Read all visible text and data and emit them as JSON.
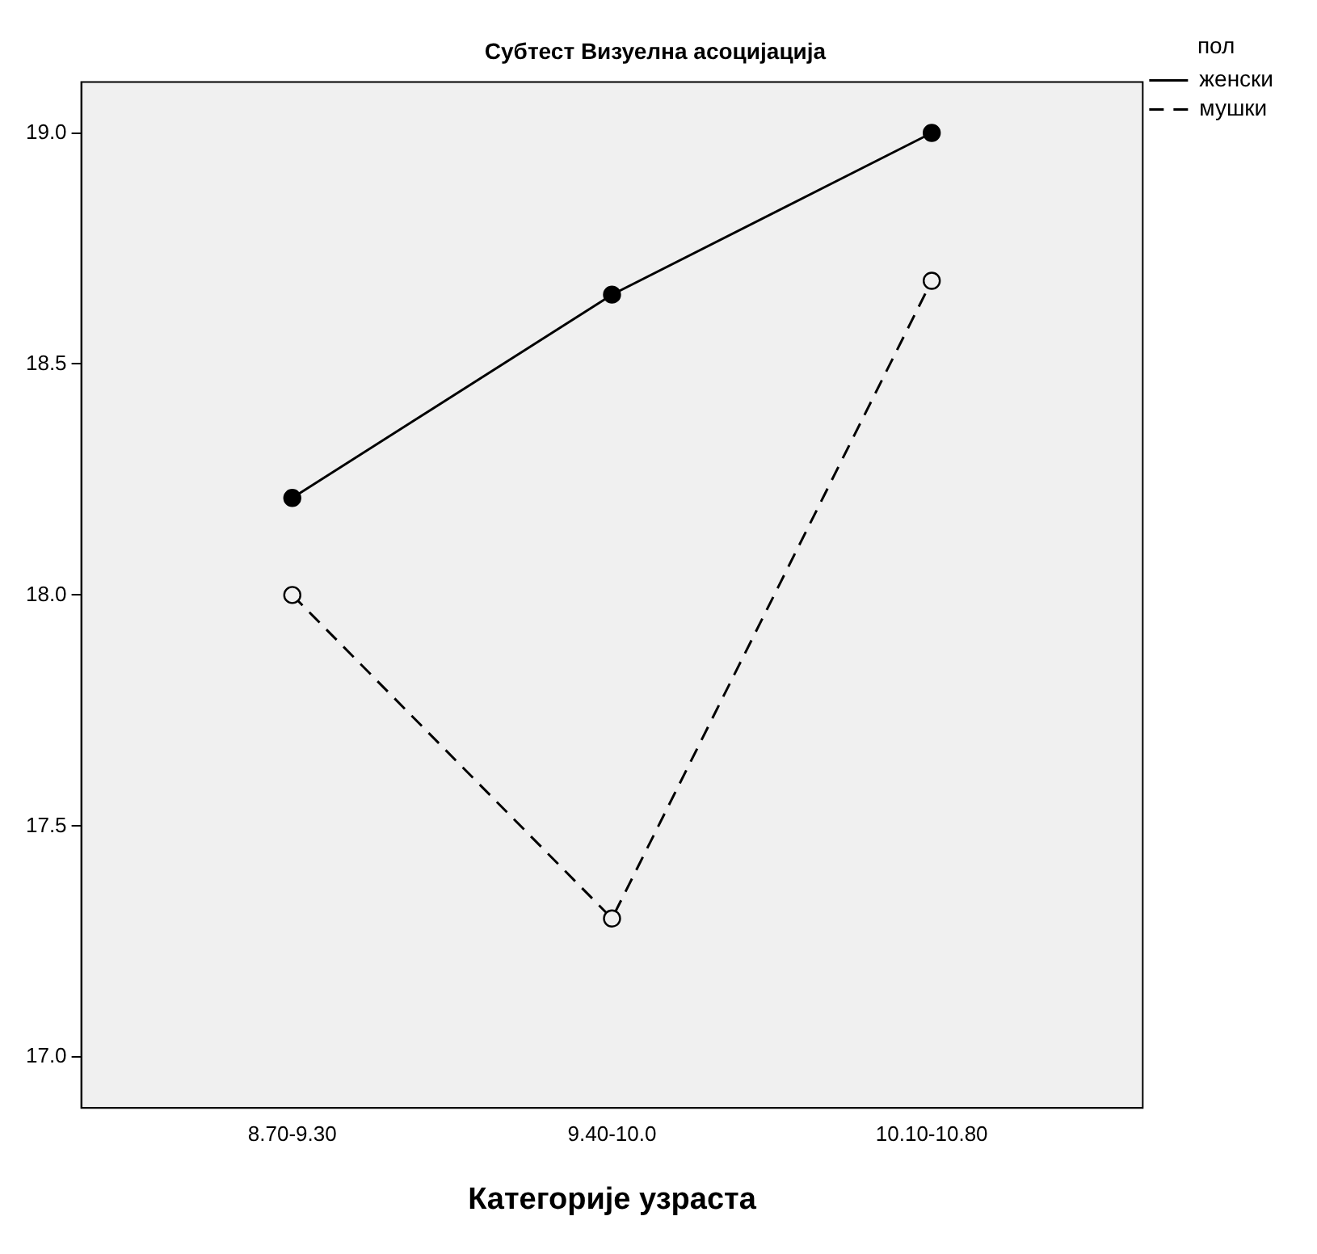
{
  "chart_data": {
    "type": "line",
    "title": "Субтест Визуелна асоцијација",
    "xlabel": "Категорије узраста",
    "categories": [
      "8.70-9.30",
      "9.40-10.0",
      "10.10-10.80"
    ],
    "series": [
      {
        "name": "женски",
        "color": "#000000",
        "values": [
          18.21,
          18.65,
          19.0
        ],
        "line_style": "solid"
      },
      {
        "name": "мушки",
        "color": "#000000",
        "values": [
          18.0,
          17.3,
          18.68
        ],
        "line_style": "dashed"
      }
    ],
    "ylim": [
      16.89,
      19.11
    ],
    "yticks": [
      {
        "value": 17,
        "label": "17.0"
      },
      {
        "value": 17.5,
        "label": "17.5"
      },
      {
        "value": 18,
        "label": "18.0"
      },
      {
        "value": 18.5,
        "label": "18.5"
      },
      {
        "value": 19,
        "label": "19.0"
      }
    ],
    "grid": false,
    "legend": "top right",
    "legend_title": "пол",
    "marker": "circle"
  }
}
